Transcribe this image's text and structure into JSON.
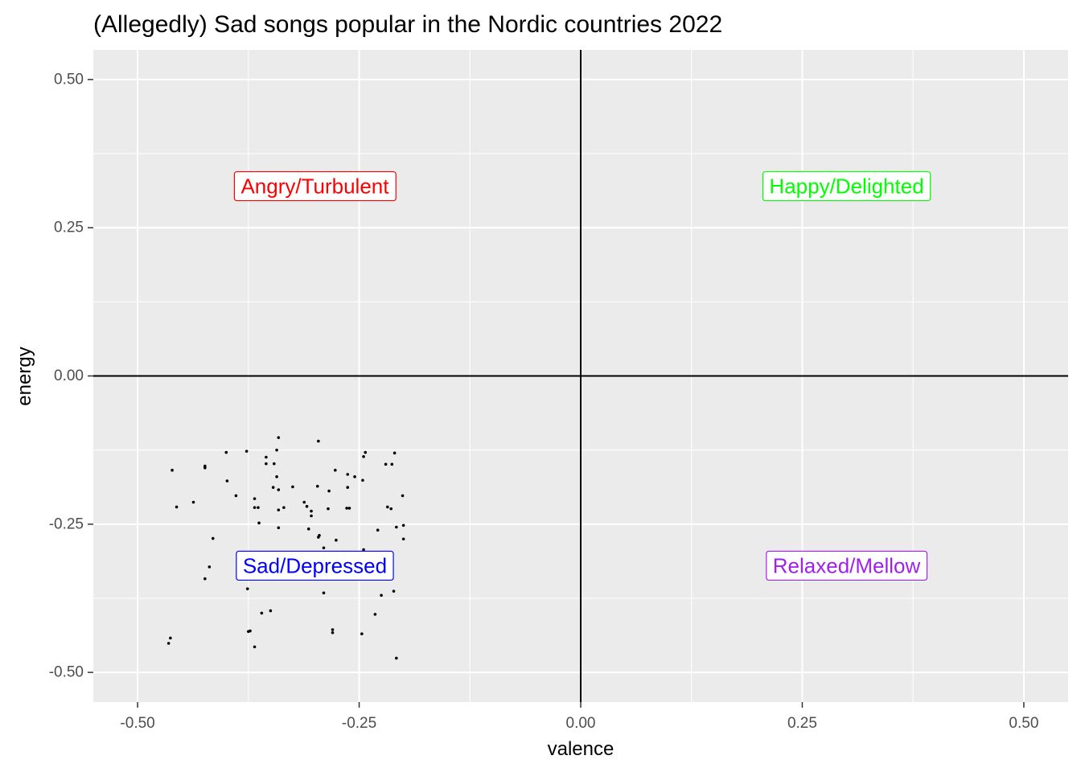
{
  "chart_data": {
    "type": "scatter",
    "title": "(Allegedly) Sad songs popular in the Nordic countries 2022",
    "xlabel": "valence",
    "ylabel": "energy",
    "xlim": [
      -0.55,
      0.55
    ],
    "ylim": [
      -0.55,
      0.55
    ],
    "x_ticks": [
      -0.5,
      -0.25,
      0.0,
      0.25,
      0.5
    ],
    "x_tick_labels": [
      "-0.50",
      "-0.25",
      "0.00",
      "0.25",
      "0.50"
    ],
    "y_ticks": [
      -0.5,
      -0.25,
      0.0,
      0.25,
      0.5
    ],
    "y_tick_labels": [
      "-0.50",
      "-0.25",
      "0.00",
      "0.25",
      "0.50"
    ],
    "grid": true,
    "reference_lines": {
      "x": 0,
      "y": 0
    },
    "annotations": [
      {
        "text": "Angry/Turbulent",
        "x": -0.3,
        "y": 0.32,
        "color": "#FF0000"
      },
      {
        "text": "Happy/Delighted",
        "x": 0.3,
        "y": 0.32,
        "color": "#00FF00"
      },
      {
        "text": "Sad/Depressed",
        "x": -0.3,
        "y": -0.32,
        "color": "#0000FF"
      },
      {
        "text": "Relaxed/Mellow",
        "x": 0.3,
        "y": -0.32,
        "color": "#A020F0"
      }
    ],
    "colors": {
      "panel": "#EBEBEB",
      "grid": "#FFFFFF",
      "points": "#000000",
      "ref_lines": "#000000"
    },
    "points": [
      [
        -0.341,
        -0.104
      ],
      [
        -0.296,
        -0.11
      ],
      [
        -0.343,
        -0.125
      ],
      [
        -0.377,
        -0.127
      ],
      [
        -0.4,
        -0.129
      ],
      [
        -0.243,
        -0.129
      ],
      [
        -0.21,
        -0.13
      ],
      [
        -0.245,
        -0.136
      ],
      [
        -0.355,
        -0.137
      ],
      [
        -0.355,
        -0.148
      ],
      [
        -0.346,
        -0.148
      ],
      [
        -0.22,
        -0.149
      ],
      [
        -0.213,
        -0.149
      ],
      [
        -0.424,
        -0.152
      ],
      [
        -0.424,
        -0.155
      ],
      [
        -0.461,
        -0.159
      ],
      [
        -0.277,
        -0.159
      ],
      [
        -0.263,
        -0.166
      ],
      [
        -0.343,
        -0.17
      ],
      [
        -0.255,
        -0.17
      ],
      [
        -0.246,
        -0.176
      ],
      [
        -0.399,
        -0.177
      ],
      [
        -0.297,
        -0.186
      ],
      [
        -0.325,
        -0.187
      ],
      [
        -0.263,
        -0.188
      ],
      [
        -0.347,
        -0.188
      ],
      [
        -0.341,
        -0.192
      ],
      [
        -0.284,
        -0.194
      ],
      [
        -0.389,
        -0.202
      ],
      [
        -0.201,
        -0.202
      ],
      [
        -0.368,
        -0.207
      ],
      [
        -0.437,
        -0.213
      ],
      [
        -0.312,
        -0.213
      ],
      [
        -0.309,
        -0.22
      ],
      [
        -0.456,
        -0.221
      ],
      [
        -0.218,
        -0.221
      ],
      [
        -0.368,
        -0.222
      ],
      [
        -0.364,
        -0.222
      ],
      [
        -0.335,
        -0.222
      ],
      [
        -0.264,
        -0.223
      ],
      [
        -0.261,
        -0.223
      ],
      [
        -0.214,
        -0.224
      ],
      [
        -0.285,
        -0.224
      ],
      [
        -0.341,
        -0.226
      ],
      [
        -0.304,
        -0.228
      ],
      [
        -0.304,
        -0.236
      ],
      [
        -0.363,
        -0.248
      ],
      [
        -0.2,
        -0.252
      ],
      [
        -0.208,
        -0.255
      ],
      [
        -0.341,
        -0.256
      ],
      [
        -0.307,
        -0.258
      ],
      [
        -0.229,
        -0.26
      ],
      [
        -0.295,
        -0.269
      ],
      [
        -0.296,
        -0.272
      ],
      [
        -0.415,
        -0.274
      ],
      [
        -0.2,
        -0.275
      ],
      [
        -0.276,
        -0.277
      ],
      [
        -0.29,
        -0.29
      ],
      [
        -0.245,
        -0.293
      ],
      [
        -0.419,
        -0.322
      ],
      [
        -0.424,
        -0.342
      ],
      [
        -0.376,
        -0.359
      ],
      [
        -0.29,
        -0.366
      ],
      [
        -0.211,
        -0.363
      ],
      [
        -0.225,
        -0.37
      ],
      [
        -0.35,
        -0.396
      ],
      [
        -0.36,
        -0.4
      ],
      [
        -0.232,
        -0.402
      ],
      [
        -0.373,
        -0.43
      ],
      [
        -0.375,
        -0.431
      ],
      [
        -0.28,
        -0.428
      ],
      [
        -0.28,
        -0.433
      ],
      [
        -0.247,
        -0.435
      ],
      [
        -0.463,
        -0.442
      ],
      [
        -0.465,
        -0.451
      ],
      [
        -0.368,
        -0.457
      ],
      [
        -0.208,
        -0.476
      ]
    ]
  }
}
